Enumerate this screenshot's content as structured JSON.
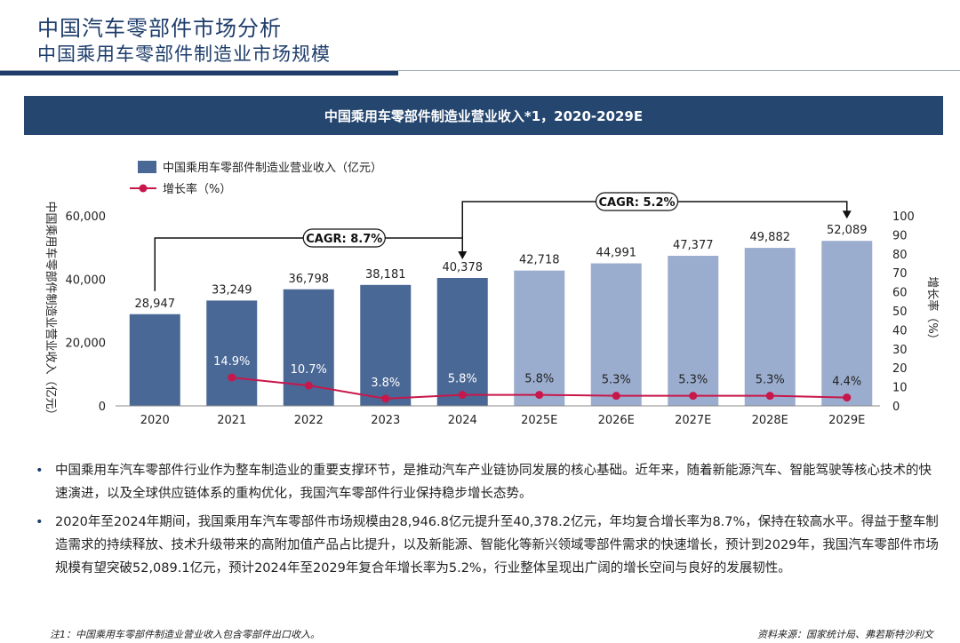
{
  "header": {
    "title": "中国汽车零部件市场分析",
    "subtitle": "中国乘用车零部件制造业市场规模"
  },
  "banner": {
    "title": "中国乘用车零部件制造业营业收入*1，2020-2029E"
  },
  "chart_data": {
    "type": "bar",
    "categories": [
      "2020",
      "2021",
      "2022",
      "2023",
      "2024",
      "2025E",
      "2026E",
      "2027E",
      "2028E",
      "2029E"
    ],
    "series": [
      {
        "name": "中国乘用车零部件制造业营业收入（亿元）",
        "values": [
          28947,
          33249,
          36798,
          38181,
          40378,
          42718,
          44991,
          47377,
          49882,
          52089
        ],
        "labels": [
          "28,947",
          "33,249",
          "36,798",
          "38,181",
          "40,378",
          "42,718",
          "44,991",
          "47,377",
          "49,882",
          "52,089"
        ],
        "color_actual": "#4a6896",
        "color_forecast": "#9badce"
      },
      {
        "name": "增长率（%）",
        "type": "line",
        "values": [
          null,
          14.9,
          10.7,
          3.8,
          5.8,
          5.8,
          5.3,
          5.3,
          5.3,
          4.4
        ],
        "labels": [
          "",
          "14.9%",
          "10.7%",
          "3.8%",
          "5.8%",
          "5.8%",
          "5.3%",
          "5.3%",
          "5.3%",
          "4.4%"
        ],
        "color": "#c8174a"
      }
    ],
    "y_left": {
      "label": "中国乘用车零部件制造业营业收入（亿元）",
      "range": [
        0,
        60000
      ],
      "ticks": [
        "0",
        "20,000",
        "40,000",
        "60,000"
      ],
      "tick_values": [
        0,
        20000,
        40000,
        60000
      ]
    },
    "y_right": {
      "label": "增长率（%）",
      "range": [
        0,
        100
      ],
      "ticks": [
        "0",
        "10",
        "20",
        "30",
        "40",
        "50",
        "60",
        "70",
        "80",
        "90",
        "100"
      ],
      "tick_values": [
        0,
        10,
        20,
        30,
        40,
        50,
        60,
        70,
        80,
        90,
        100
      ]
    },
    "annotations": [
      {
        "text": "CAGR: 8.7%",
        "from": 0,
        "to": 4
      },
      {
        "text": "CAGR: 5.2%",
        "from": 4,
        "to": 9
      }
    ],
    "legend_placement": "top-left",
    "grid": false
  },
  "bullets": [
    "中国乘用车汽车零部件行业作为整车制造业的重要支撑环节，是推动汽车产业链协同发展的核心基础。近年来，随着新能源汽车、智能驾驶等核心技术的快速演进，以及全球供应链体系的重构优化，我国汽车零部件行业保持稳步增长态势。",
    "2020年至2024年期间，我国乘用车汽车零部件市场规模由28,946.8亿元提升至40,378.2亿元，年均复合增长率为8.7%，保持在较高水平。得益于整车制造需求的持续释放、技术升级带来的高附加值产品占比提升，以及新能源、智能化等新兴领域零部件需求的快速增长，预计到2029年，我国汽车零部件市场规模有望突破52,089.1亿元，预计2024年至2029年复合年增长率为5.2%，行业整体呈现出广阔的增长空间与良好的发展韧性。"
  ],
  "footer": {
    "note": "注1：中国乘用车零部件制造业营业收入包含零部件出口收入。",
    "source": "资料来源：国家统计局、弗若斯特沙利文"
  }
}
